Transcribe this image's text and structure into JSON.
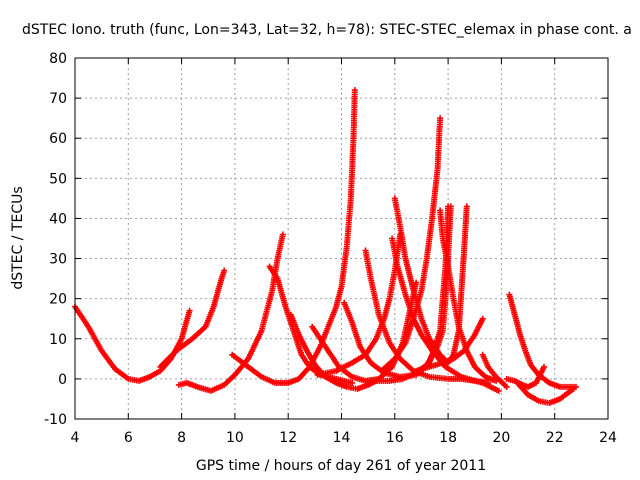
{
  "colors": {
    "series": "#ff0000",
    "grid": "#a0a0a0",
    "axis": "#000000"
  },
  "chart_data": {
    "type": "scatter",
    "marker": "plus",
    "title": "dSTEC Iono. truth (func, Lon=343, Lat=32, h=78): STEC-STEC_elemax in phase cont. a",
    "xlabel": "GPS time / hours of day 261 of year 2011",
    "ylabel": "dSTEC  / TECUs",
    "xlim": [
      4,
      24
    ],
    "ylim": [
      -10,
      80
    ],
    "xticks": [
      4,
      6,
      8,
      10,
      12,
      14,
      16,
      18,
      20,
      22,
      24
    ],
    "yticks": [
      -10,
      0,
      10,
      20,
      30,
      40,
      50,
      60,
      70,
      80
    ],
    "grid": true,
    "series": [
      {
        "arcs": [
          [
            [
              4.0,
              18
            ],
            [
              4.5,
              13
            ],
            [
              5.0,
              7
            ],
            [
              5.5,
              2.5
            ],
            [
              6.0,
              0
            ],
            [
              6.4,
              -0.5
            ],
            [
              6.8,
              0.5
            ],
            [
              7.2,
              2
            ],
            [
              7.6,
              5
            ],
            [
              8.0,
              10
            ],
            [
              8.3,
              17
            ]
          ],
          [
            [
              7.9,
              -1.5
            ],
            [
              8.2,
              -1
            ],
            [
              8.6,
              -2
            ],
            [
              9.1,
              -3
            ],
            [
              9.6,
              -1.5
            ],
            [
              10.0,
              1
            ],
            [
              10.5,
              5
            ],
            [
              11.0,
              12
            ],
            [
              11.4,
              22
            ],
            [
              11.6,
              30
            ],
            [
              11.8,
              36
            ]
          ],
          [
            [
              7.2,
              3
            ],
            [
              7.8,
              7
            ],
            [
              8.4,
              10
            ],
            [
              8.9,
              13
            ],
            [
              9.2,
              18
            ],
            [
              9.5,
              25
            ],
            [
              9.6,
              27
            ]
          ],
          [
            [
              11.3,
              28
            ],
            [
              11.6,
              25
            ],
            [
              11.9,
              18
            ],
            [
              12.2,
              12
            ],
            [
              12.5,
              6
            ],
            [
              12.8,
              3
            ],
            [
              13.2,
              1
            ],
            [
              13.8,
              0
            ],
            [
              14.4,
              -1
            ]
          ],
          [
            [
              9.9,
              6
            ],
            [
              10.5,
              3
            ],
            [
              11.0,
              0.5
            ],
            [
              11.5,
              -1
            ],
            [
              12.0,
              -1
            ],
            [
              12.4,
              0
            ],
            [
              12.8,
              3
            ],
            [
              13.2,
              8
            ],
            [
              13.5,
              13
            ],
            [
              13.8,
              18
            ],
            [
              14.0,
              23
            ],
            [
              14.2,
              33
            ],
            [
              14.35,
              45
            ],
            [
              14.45,
              60
            ],
            [
              14.5,
              72
            ]
          ],
          [
            [
              12.1,
              16
            ],
            [
              12.4,
              11
            ],
            [
              12.7,
              7
            ],
            [
              13.0,
              3.5
            ],
            [
              13.4,
              0.5
            ],
            [
              13.8,
              -1
            ],
            [
              14.2,
              -2
            ],
            [
              14.6,
              -2.5
            ],
            [
              15.0,
              -1.5
            ],
            [
              15.3,
              -0.5
            ]
          ],
          [
            [
              12.9,
              13
            ],
            [
              13.4,
              8
            ],
            [
              13.9,
              3
            ],
            [
              14.4,
              0.5
            ],
            [
              14.9,
              -0.5
            ],
            [
              15.4,
              0
            ],
            [
              15.9,
              3
            ],
            [
              16.3,
              9
            ],
            [
              16.6,
              18
            ],
            [
              16.8,
              24
            ]
          ],
          [
            [
              13.1,
              1
            ],
            [
              13.8,
              2
            ],
            [
              14.4,
              4
            ],
            [
              14.9,
              6
            ],
            [
              15.3,
              10
            ],
            [
              15.6,
              15
            ],
            [
              15.8,
              20
            ],
            [
              16.0,
              27
            ],
            [
              16.2,
              36
            ]
          ],
          [
            [
              14.1,
              19
            ],
            [
              14.4,
              14
            ],
            [
              14.7,
              8
            ],
            [
              15.1,
              4
            ],
            [
              15.6,
              1.5
            ],
            [
              16.2,
              0.5
            ],
            [
              16.8,
              1
            ],
            [
              17.3,
              4
            ],
            [
              17.7,
              12
            ],
            [
              17.9,
              28
            ],
            [
              18.0,
              43
            ]
          ],
          [
            [
              14.9,
              32
            ],
            [
              15.1,
              25
            ],
            [
              15.4,
              16
            ],
            [
              15.8,
              9
            ],
            [
              16.2,
              5
            ],
            [
              16.7,
              2
            ],
            [
              17.3,
              0.5
            ],
            [
              18.0,
              0
            ],
            [
              18.5,
              0
            ],
            [
              19.0,
              -0.5
            ],
            [
              19.5,
              -1
            ]
          ],
          [
            [
              15.9,
              35
            ],
            [
              16.1,
              28
            ],
            [
              16.4,
              21
            ],
            [
              16.7,
              15
            ],
            [
              17.0,
              11
            ],
            [
              17.4,
              7
            ],
            [
              17.9,
              3
            ],
            [
              18.5,
              0.5
            ],
            [
              19.3,
              -1
            ],
            [
              19.9,
              -3
            ]
          ],
          [
            [
              16.0,
              45
            ],
            [
              16.2,
              38
            ],
            [
              16.4,
              30
            ],
            [
              16.7,
              22
            ],
            [
              17.0,
              15
            ],
            [
              17.3,
              10
            ],
            [
              17.7,
              6
            ],
            [
              18.0,
              4
            ],
            [
              18.2,
              6
            ],
            [
              18.4,
              12
            ],
            [
              18.5,
              22
            ],
            [
              18.6,
              32
            ],
            [
              18.7,
              43
            ]
          ],
          [
            [
              15.2,
              -0.5
            ],
            [
              15.8,
              -0.5
            ],
            [
              16.3,
              0
            ],
            [
              16.8,
              1.5
            ],
            [
              17.2,
              3.5
            ],
            [
              17.6,
              8
            ],
            [
              17.8,
              12
            ],
            [
              17.9,
              20
            ],
            [
              18.0,
              30
            ],
            [
              18.1,
              43
            ]
          ],
          [
            [
              15.5,
              2
            ],
            [
              16.0,
              5
            ],
            [
              16.4,
              9
            ],
            [
              16.7,
              15
            ],
            [
              17.0,
              22
            ],
            [
              17.2,
              30
            ],
            [
              17.4,
              40
            ],
            [
              17.6,
              52
            ],
            [
              17.7,
              65
            ]
          ],
          [
            [
              16.8,
              2
            ],
            [
              17.3,
              3
            ],
            [
              17.8,
              4
            ],
            [
              18.2,
              5
            ],
            [
              18.6,
              7
            ],
            [
              19.0,
              11
            ],
            [
              19.3,
              15
            ]
          ],
          [
            [
              17.7,
              42
            ],
            [
              17.8,
              35
            ],
            [
              18.0,
              28
            ],
            [
              18.2,
              20
            ],
            [
              18.4,
              13
            ],
            [
              18.7,
              7
            ],
            [
              19.0,
              3
            ],
            [
              19.4,
              0.5
            ],
            [
              19.8,
              -0.5
            ]
          ],
          [
            [
              19.3,
              6
            ],
            [
              19.5,
              3
            ],
            [
              19.8,
              0.5
            ],
            [
              20.2,
              -2
            ]
          ],
          [
            [
              20.3,
              21
            ],
            [
              20.5,
              16
            ],
            [
              20.7,
              11
            ],
            [
              20.9,
              7
            ],
            [
              21.1,
              3.5
            ],
            [
              21.4,
              1
            ],
            [
              21.8,
              -1
            ],
            [
              22.2,
              -2
            ],
            [
              22.5,
              -2
            ],
            [
              22.8,
              -2
            ]
          ],
          [
            [
              20.2,
              0
            ],
            [
              20.5,
              -0.5
            ],
            [
              20.8,
              -1.5
            ],
            [
              21.0,
              -2
            ],
            [
              21.3,
              -1
            ],
            [
              21.6,
              3
            ]
          ],
          [
            [
              20.6,
              -1
            ],
            [
              21.0,
              -4
            ],
            [
              21.4,
              -5.5
            ],
            [
              21.8,
              -6
            ],
            [
              22.2,
              -5
            ],
            [
              22.5,
              -3.5
            ],
            [
              22.7,
              -2.5
            ]
          ]
        ]
      }
    ]
  }
}
